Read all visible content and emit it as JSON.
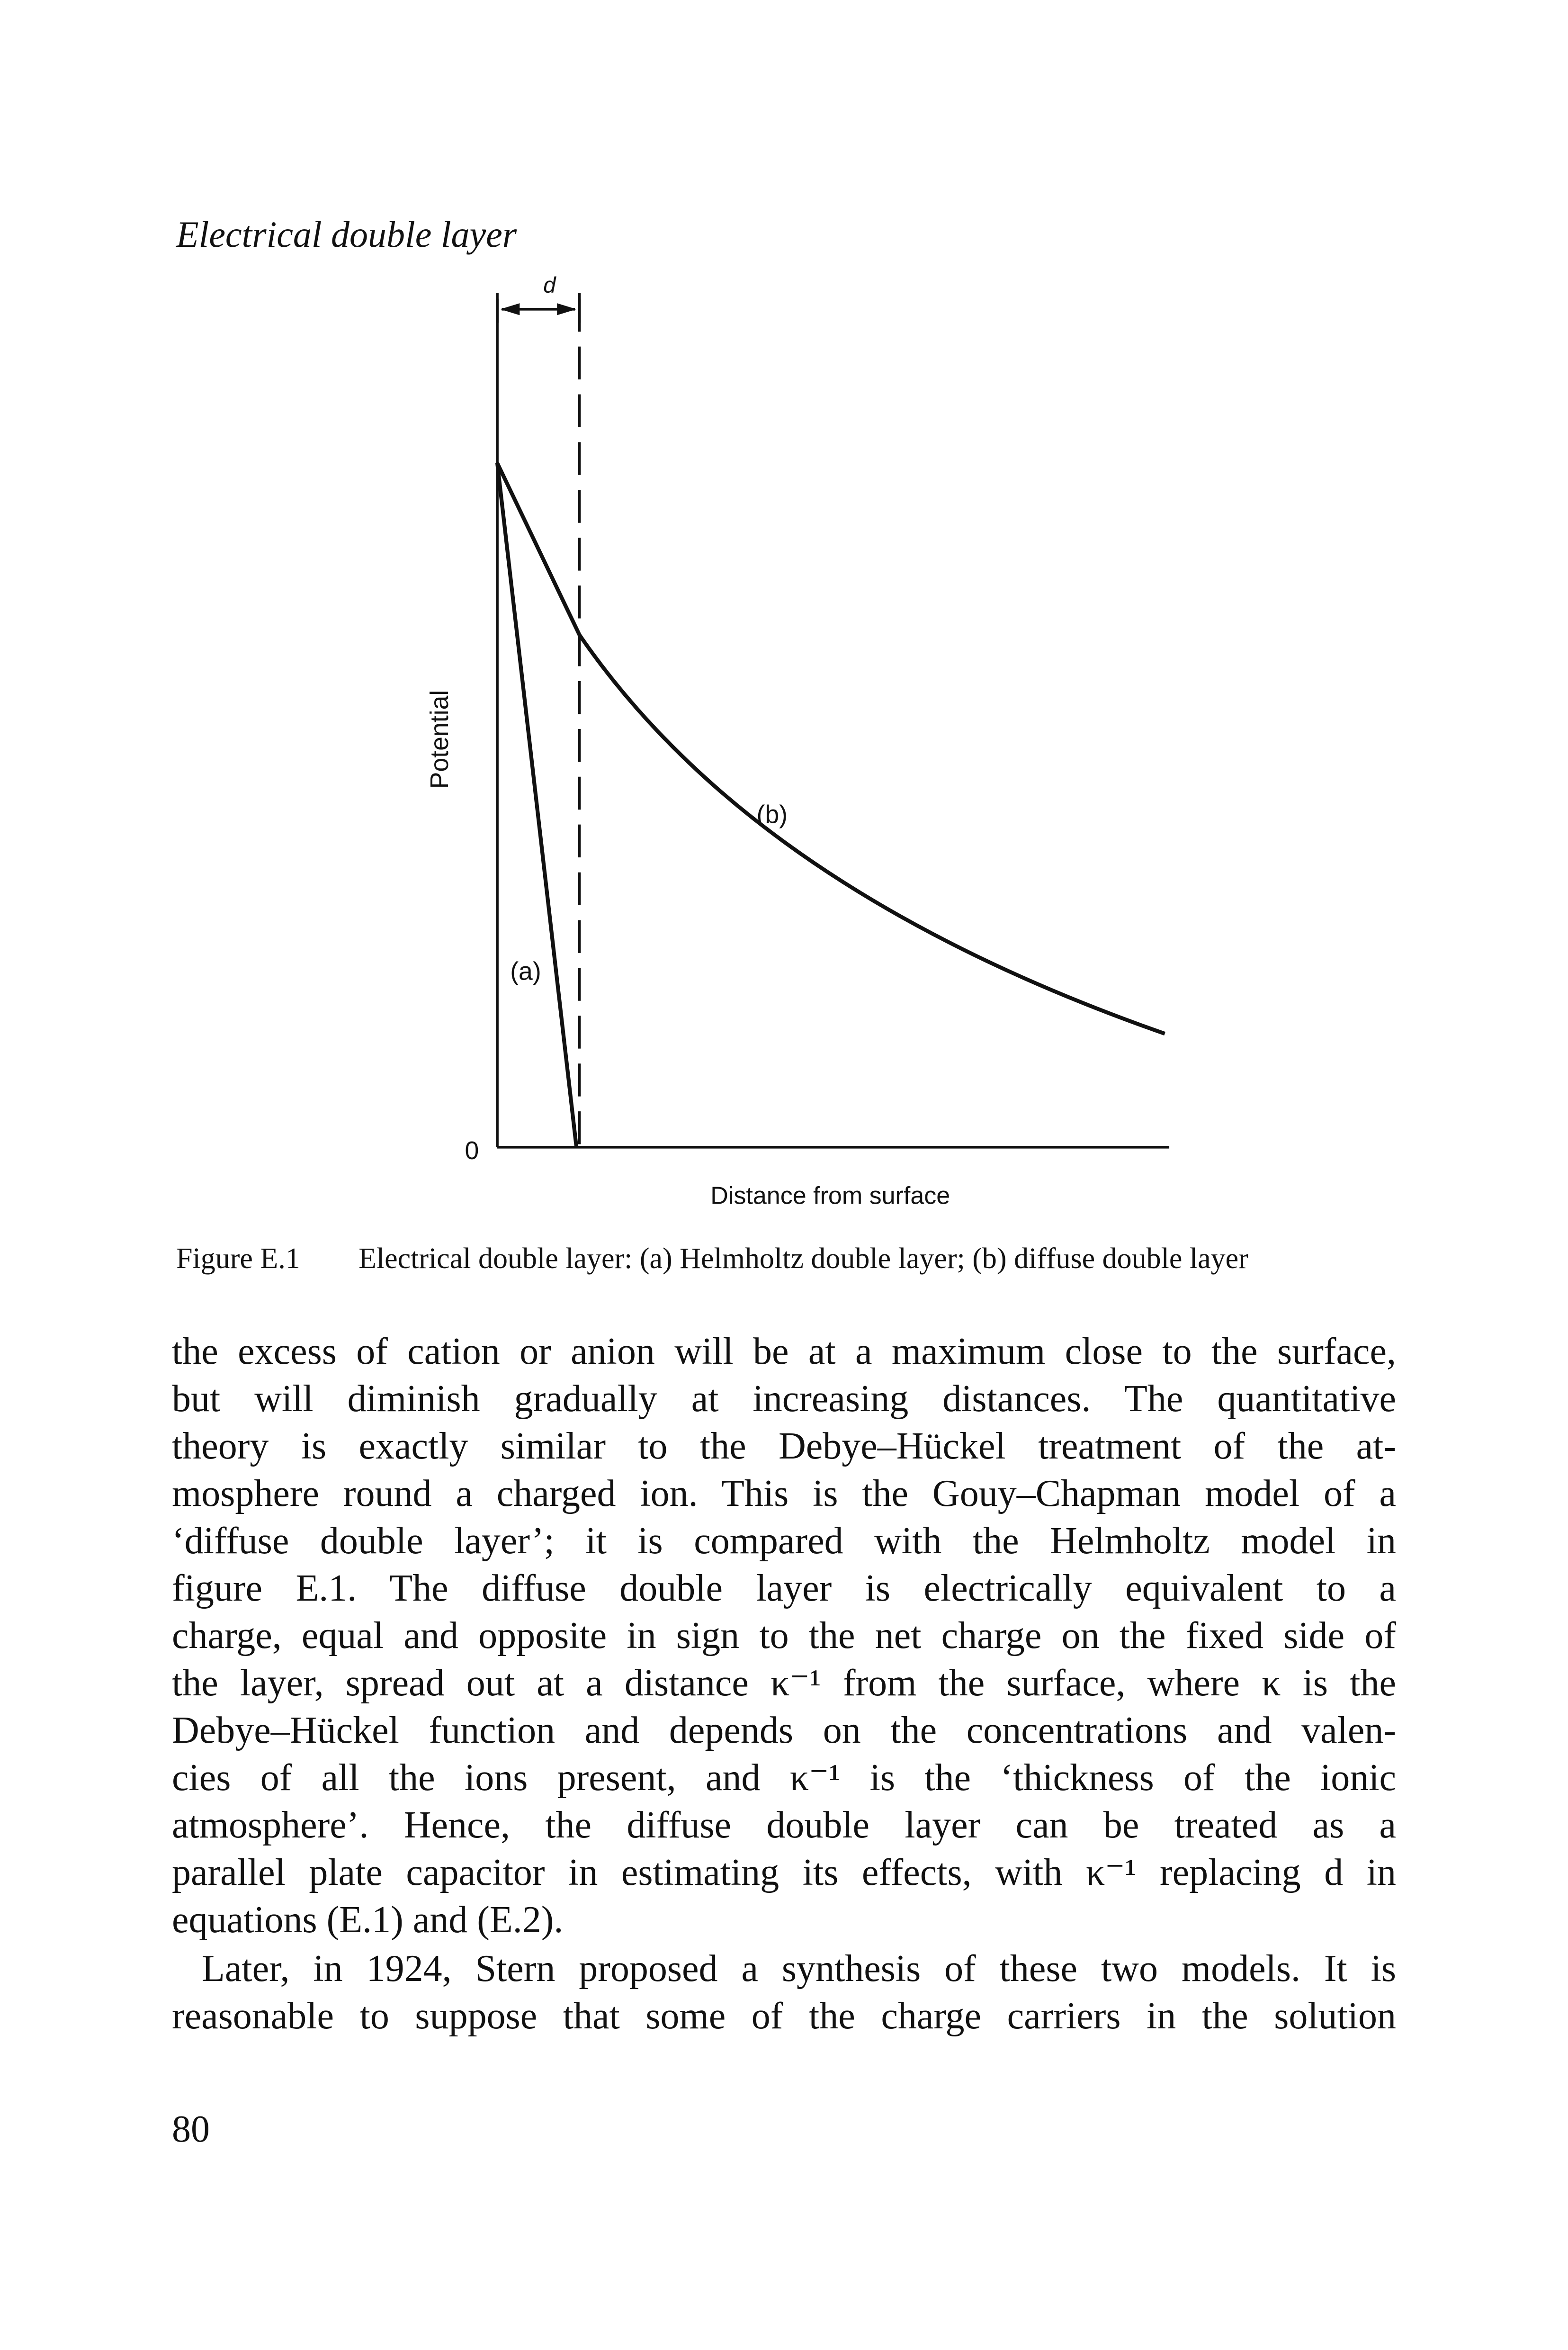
{
  "header": {
    "running_head": "Electrical double layer"
  },
  "figure": {
    "d_label": "d",
    "y_axis_label": "Potential",
    "origin_label": "0",
    "curve_a_label": "(a)",
    "curve_b_label": "(b)",
    "x_axis_label": "Distance from surface",
    "caption": {
      "number": "Figure E.1",
      "text": "Electrical double layer: (a) Helmholtz double layer; (b) diffuse double layer"
    }
  },
  "body": {
    "paragraphs": [
      [
        "the excess of cation or anion will be at a maximum close to the surface,",
        "but will diminish gradually at increasing distances. The quantitative",
        "theory is exactly similar to the Debye–Hückel treatment of the at-",
        "mosphere round a charged ion. This is the Gouy–Chapman model of a",
        "‘diffuse double layer’; it is compared with the Helmholtz model in",
        "figure E.1. The diffuse double layer is electrically equivalent to a",
        "charge, equal and opposite in sign to the net charge on the fixed side of",
        "the layer, spread out at a distance κ⁻¹ from the surface, where κ is the",
        "Debye–Hückel function and depends on the concentrations and valen-",
        "cies of all the ions present, and κ⁻¹ is the ‘thickness of the ionic",
        "atmosphere’. Hence, the diffuse double layer can be treated as a",
        "parallel plate capacitor in estimating its effects, with κ⁻¹ replacing d in",
        "equations (E.1) and (E.2)."
      ],
      [
        "Later, in 1924, Stern proposed a synthesis of these two models. It is",
        "reasonable to suppose that some of the charge carriers in the solution"
      ]
    ]
  },
  "footer": {
    "page_number": "80"
  }
}
